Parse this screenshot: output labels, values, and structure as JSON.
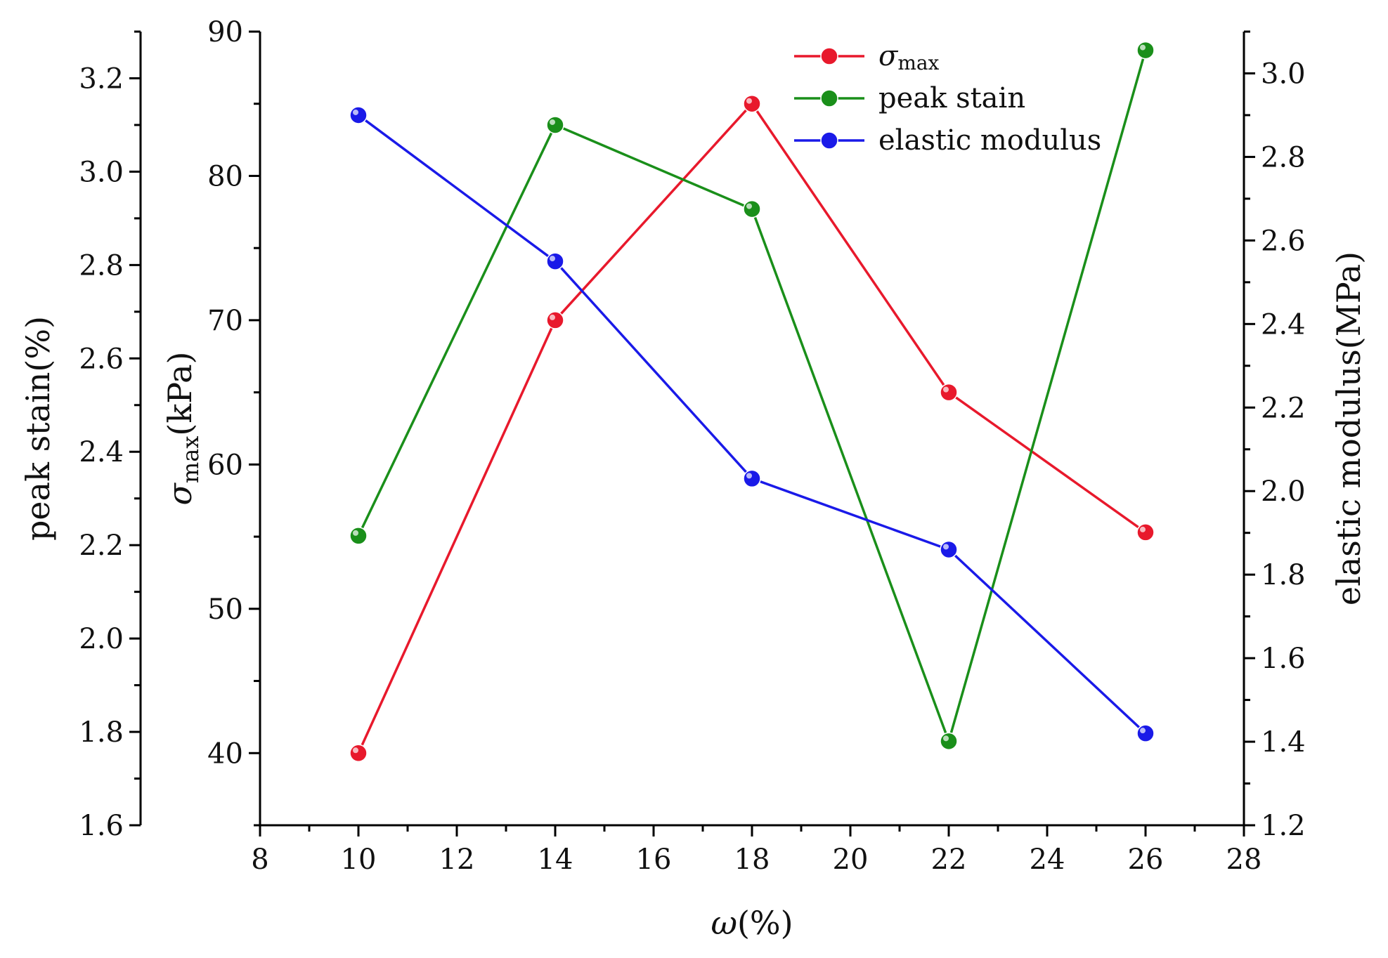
{
  "chart_data": {
    "type": "line",
    "title": "",
    "xlabel_symbol": "ω",
    "xlabel_unit": "(%)",
    "xlim": [
      8,
      28
    ],
    "x_ticks": [
      8,
      10,
      12,
      14,
      16,
      18,
      20,
      22,
      24,
      26,
      28
    ],
    "x": [
      10,
      14,
      18,
      22,
      26
    ],
    "axes": {
      "left_outer": {
        "label": "peak stain(%)",
        "lim": [
          1.6,
          3.3
        ],
        "ticks": [
          "1.6",
          "1.8",
          "2.0",
          "2.2",
          "2.4",
          "2.6",
          "2.8",
          "3.0",
          "3.2"
        ]
      },
      "left_inner": {
        "label_symbol": "σ",
        "label_sub": "max",
        "label_unit": "(kPa)",
        "lim": [
          35,
          90
        ],
        "ticks": [
          "40",
          "50",
          "60",
          "70",
          "80",
          "90"
        ]
      },
      "right": {
        "label": "elastic modulus(MPa)",
        "lim": [
          1.2,
          3.1
        ],
        "ticks": [
          "1.2",
          "1.4",
          "1.6",
          "1.8",
          "2.0",
          "2.2",
          "2.4",
          "2.6",
          "2.8",
          "3.0"
        ]
      }
    },
    "series": [
      {
        "name_symbol": "σ",
        "name_sub": "max",
        "axis": "left_inner",
        "color": "#e8192c",
        "values": [
          40.0,
          70.0,
          85.0,
          65.0,
          55.3
        ]
      },
      {
        "name": "peak stain",
        "axis": "left_outer",
        "color": "#1a8f1a",
        "values": [
          2.22,
          3.1,
          2.92,
          1.78,
          3.26
        ]
      },
      {
        "name": "elastic modulus",
        "axis": "right",
        "color": "#1a1ae8",
        "values": [
          2.9,
          2.55,
          2.03,
          1.86,
          1.42
        ]
      }
    ],
    "legend_position": "top-right",
    "grid": false
  }
}
